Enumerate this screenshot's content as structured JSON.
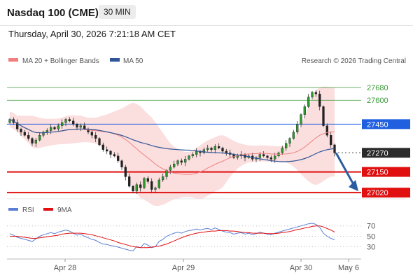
{
  "header": {
    "title": "Nasdaq 100 (CME)",
    "timeframe": "30 MIN",
    "timestamp": "Thursday, April 30, 2026 7:21:18 AM CET"
  },
  "credit": "Research © 2026 Trading Central",
  "colors": {
    "bollinger": "#f08080",
    "ma50": "#2f5597",
    "support": "#e01010",
    "resistance_green": "#3a9a3a",
    "pivot_blue": "#1f5fe0",
    "arrow": "#2a5d9f",
    "candle": "#2e9a2e",
    "rsi": "#5b7fd6",
    "rsi_ma": "#e01010"
  },
  "chart_data": [
    {
      "type": "candlestick",
      "legend": [
        {
          "name": "MA 20 + Bollinger Bands",
          "color": "#f08080"
        },
        {
          "name": "MA 50",
          "color": "#2f5597"
        }
      ],
      "x_labels": [
        "Apr 28",
        "Apr 29",
        "Apr 30",
        "May 6"
      ],
      "ylim": [
        26990,
        27790
      ],
      "levels": [
        {
          "value": 27680,
          "label": "27680",
          "kind": "resistance"
        },
        {
          "value": 27600,
          "label": "27600",
          "kind": "resistance"
        },
        {
          "value": 27450,
          "label": "27450",
          "kind": "pivot"
        },
        {
          "value": 27270,
          "label": "27270",
          "kind": "last"
        },
        {
          "value": 27150,
          "label": "27150",
          "kind": "support"
        },
        {
          "value": 27020,
          "label": "27020",
          "kind": "support"
        }
      ],
      "last_price": 27270,
      "target": 27020,
      "close": [
        27480,
        27460,
        27420,
        27400,
        27380,
        27360,
        27330,
        27350,
        27380,
        27400,
        27410,
        27430,
        27420,
        27440,
        27460,
        27480,
        27470,
        27450,
        27430,
        27440,
        27420,
        27400,
        27380,
        27360,
        27320,
        27290,
        27280,
        27260,
        27250,
        27220,
        27180,
        27120,
        27060,
        27030,
        27070,
        27050,
        27110,
        27090,
        27040,
        27050,
        27100,
        27120,
        27160,
        27180,
        27200,
        27220,
        27210,
        27230,
        27250,
        27260,
        27280,
        27270,
        27290,
        27300,
        27290,
        27310,
        27300,
        27280,
        27270,
        27260,
        27240,
        27250,
        27260,
        27240,
        27250,
        27230,
        27240,
        27260,
        27250,
        27240,
        27230,
        27250,
        27270,
        27300,
        27330,
        27360,
        27400,
        27450,
        27510,
        27560,
        27620,
        27650,
        27640,
        27560,
        27440,
        27380,
        27320,
        27270
      ],
      "open": [
        27460,
        27480,
        27460,
        27420,
        27400,
        27380,
        27360,
        27330,
        27350,
        27380,
        27400,
        27410,
        27430,
        27420,
        27440,
        27460,
        27480,
        27470,
        27450,
        27430,
        27440,
        27420,
        27400,
        27380,
        27360,
        27320,
        27290,
        27280,
        27260,
        27250,
        27220,
        27180,
        27120,
        27060,
        27030,
        27070,
        27050,
        27110,
        27090,
        27040,
        27050,
        27100,
        27120,
        27160,
        27180,
        27200,
        27220,
        27210,
        27230,
        27250,
        27260,
        27280,
        27270,
        27290,
        27300,
        27290,
        27310,
        27300,
        27280,
        27270,
        27260,
        27240,
        27250,
        27260,
        27240,
        27250,
        27230,
        27240,
        27260,
        27250,
        27240,
        27230,
        27250,
        27270,
        27300,
        27330,
        27360,
        27400,
        27450,
        27510,
        27560,
        27620,
        27650,
        27640,
        27560,
        27440,
        27380,
        27320
      ],
      "rsi_levels": [
        70,
        50,
        30
      ],
      "rsi_legend": [
        {
          "name": "RSI",
          "color": "#5b7fd6"
        },
        {
          "name": "9MA",
          "color": "#e01010"
        }
      ],
      "rsi": [
        55,
        52,
        48,
        46,
        44,
        42,
        40,
        45,
        50,
        53,
        55,
        57,
        55,
        58,
        60,
        62,
        60,
        56,
        52,
        54,
        50,
        47,
        44,
        42,
        38,
        35,
        34,
        32,
        31,
        29,
        27,
        25,
        23,
        22,
        30,
        28,
        36,
        33,
        28,
        30,
        40,
        44,
        50,
        53,
        56,
        58,
        56,
        59,
        61,
        62,
        64,
        62,
        64,
        65,
        63,
        66,
        63,
        60,
        58,
        57,
        54,
        56,
        57,
        54,
        56,
        53,
        55,
        58,
        56,
        54,
        53,
        56,
        58,
        60,
        62,
        64,
        66,
        68,
        70,
        72,
        74,
        75,
        73,
        67,
        56,
        50,
        46,
        43
      ],
      "rsi_ma": [
        50,
        50,
        50,
        49,
        48,
        47,
        46,
        46,
        47,
        48,
        49,
        50,
        51,
        52,
        54,
        55,
        56,
        56,
        56,
        56,
        55,
        54,
        53,
        51,
        49,
        47,
        45,
        43,
        41,
        38,
        36,
        34,
        32,
        30,
        29,
        28,
        28,
        28,
        29,
        30,
        31,
        33,
        35,
        38,
        41,
        44,
        47,
        50,
        52,
        54,
        56,
        57,
        58,
        59,
        60,
        60,
        61,
        61,
        61,
        60,
        60,
        59,
        58,
        57,
        57,
        56,
        56,
        56,
        56,
        55,
        55,
        55,
        56,
        57,
        58,
        59,
        61,
        63,
        64,
        66,
        67,
        69,
        70,
        70,
        68,
        65,
        62,
        58
      ]
    }
  ]
}
